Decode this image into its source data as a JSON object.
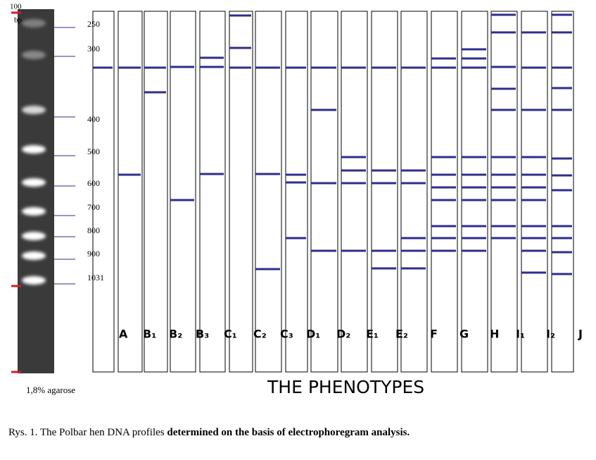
{
  "ladder": {
    "top_label": "100",
    "unit": "bp",
    "sizes": [
      "250",
      "300",
      "400",
      "500",
      "600",
      "700",
      "800",
      "900",
      "1031"
    ],
    "gel": "1,8% agarose"
  },
  "lanes": [
    "A",
    "B₁",
    "B₂",
    "B₃",
    "C₁",
    "C₂",
    "C₃",
    "D₁",
    "D₂",
    "E₁",
    "E₂",
    "F",
    "G",
    "H",
    "I₁",
    "I₂",
    "J"
  ],
  "title": "THE PHENOTYPES",
  "caption": {
    "prefix": "Rys. 1. The Polbar hen DNA profiles",
    "rest": "determined on the basis of electrophoregram analysis."
  }
}
